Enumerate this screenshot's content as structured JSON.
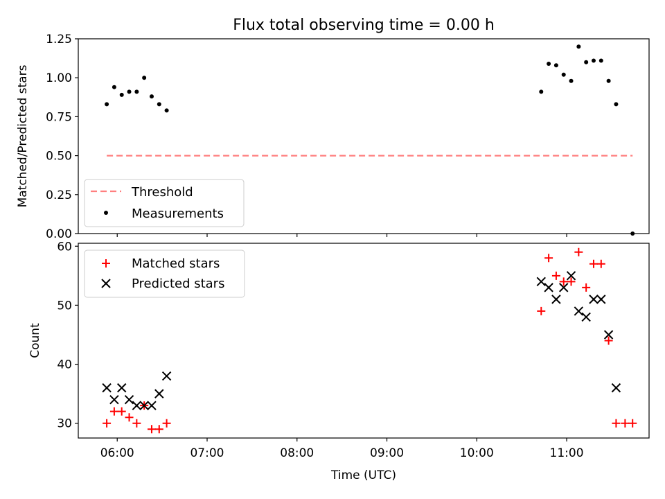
{
  "chart_data": [
    {
      "type": "scatter",
      "title": "Flux total observing time = 0.00 h",
      "xlabel": "",
      "ylabel": "Matched/Predicted stars",
      "ylim": [
        0,
        1.25
      ],
      "yticks": [
        "0.00",
        "0.25",
        "0.50",
        "0.75",
        "1.00",
        "1.25"
      ],
      "ytick_values": [
        0,
        0.25,
        0.5,
        0.75,
        1.0,
        1.25
      ],
      "xlim": [
        "05:34",
        "11:55"
      ],
      "grid": false,
      "legend_position": "lower-left",
      "series": [
        {
          "name": "Threshold",
          "type": "line",
          "style": "dashed",
          "color": "#ff7f7f",
          "x": [
            "05:53",
            "11:44"
          ],
          "y": [
            0.5,
            0.5
          ]
        },
        {
          "name": "Measurements",
          "type": "scatter",
          "color": "#000000",
          "x": [
            "05:53",
            "05:58",
            "06:03",
            "06:08",
            "06:13",
            "06:18",
            "06:23",
            "06:28",
            "06:33",
            "10:43",
            "10:48",
            "10:53",
            "10:58",
            "11:03",
            "11:08",
            "11:13",
            "11:18",
            "11:23",
            "11:28",
            "11:33",
            "11:44"
          ],
          "y": [
            0.83,
            0.94,
            0.89,
            0.91,
            0.91,
            1.0,
            0.88,
            0.83,
            0.79,
            0.91,
            1.09,
            1.08,
            1.02,
            0.98,
            1.2,
            1.1,
            1.11,
            1.11,
            0.98,
            0.83,
            0.0
          ]
        }
      ]
    },
    {
      "type": "scatter",
      "title": "",
      "xlabel": "Time (UTC)",
      "ylabel": "Count",
      "ylim": [
        27.5,
        60.5
      ],
      "yticks": [
        "30",
        "40",
        "50",
        "60"
      ],
      "ytick_values": [
        30,
        40,
        50,
        60
      ],
      "xlim": [
        "05:34",
        "11:55"
      ],
      "xticks": [
        "06:00",
        "07:00",
        "08:00",
        "09:00",
        "10:00",
        "11:00"
      ],
      "grid": false,
      "legend_position": "upper-left",
      "series": [
        {
          "name": "Matched stars",
          "marker": "plus",
          "color": "#ff0000",
          "x": [
            "05:53",
            "05:58",
            "06:03",
            "06:08",
            "06:13",
            "06:18",
            "06:23",
            "06:28",
            "06:33",
            "10:43",
            "10:48",
            "10:53",
            "10:58",
            "11:03",
            "11:08",
            "11:13",
            "11:18",
            "11:23",
            "11:28",
            "11:33",
            "11:39",
            "11:44"
          ],
          "y": [
            30,
            32,
            32,
            31,
            30,
            33,
            29,
            29,
            30,
            49,
            58,
            55,
            54,
            54,
            59,
            53,
            57,
            57,
            44,
            30,
            30,
            30
          ]
        },
        {
          "name": "Predicted stars",
          "marker": "x",
          "color": "#000000",
          "x": [
            "05:53",
            "05:58",
            "06:03",
            "06:08",
            "06:13",
            "06:18",
            "06:23",
            "06:28",
            "06:33",
            "10:43",
            "10:48",
            "10:53",
            "10:58",
            "11:03",
            "11:08",
            "11:13",
            "11:18",
            "11:23",
            "11:28",
            "11:33"
          ],
          "y": [
            36,
            34,
            36,
            34,
            33,
            33,
            33,
            35,
            38,
            54,
            53,
            51,
            53,
            55,
            49,
            48,
            51,
            51,
            45,
            36
          ]
        }
      ]
    }
  ]
}
